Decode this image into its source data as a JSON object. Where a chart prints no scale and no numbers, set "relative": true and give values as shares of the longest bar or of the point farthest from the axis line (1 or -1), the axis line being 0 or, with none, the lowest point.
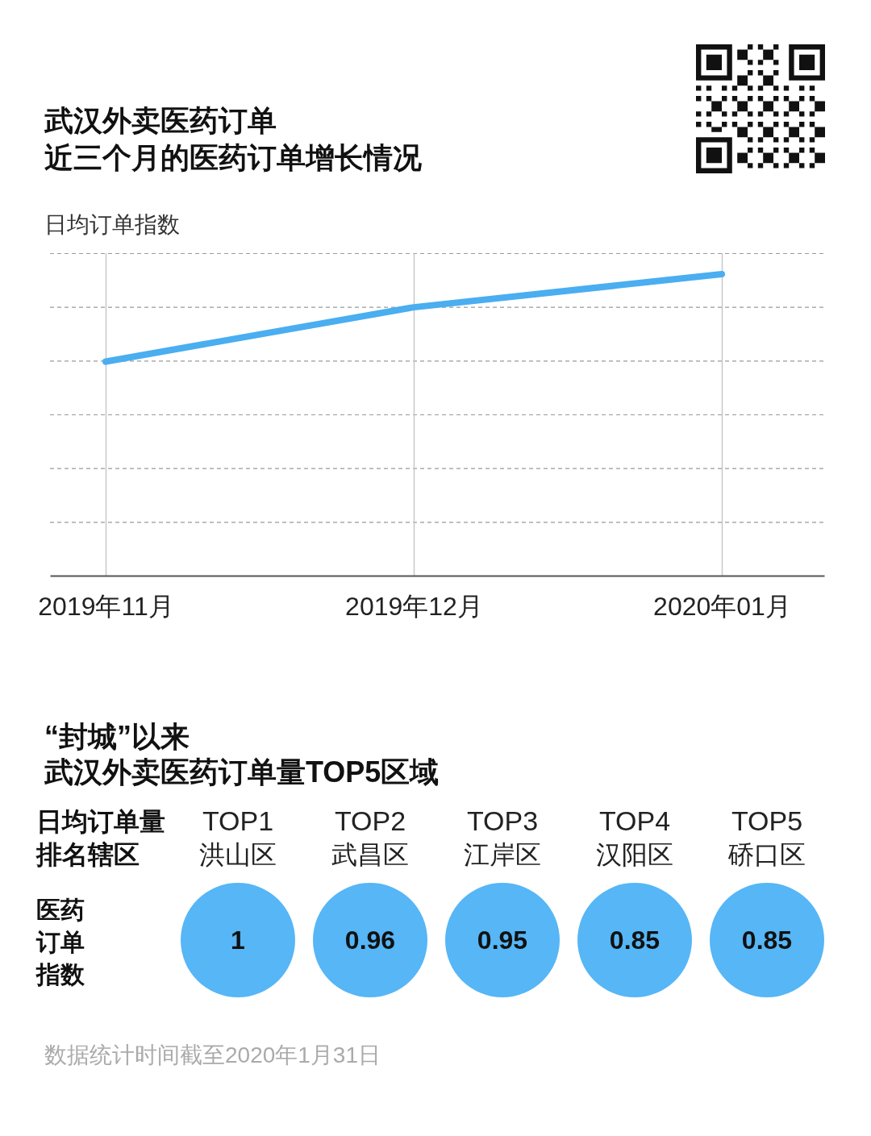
{
  "chart_data": [
    {
      "type": "line",
      "title": "武汉外卖医药订单",
      "subtitle": "近三个月的医药订单增长情况",
      "ylabel": "日均订单指数",
      "categories": [
        "2019年11月",
        "2019年12月",
        "2020年01月"
      ],
      "values": [
        0.71,
        0.89,
        1
      ],
      "color": "#4aaef0",
      "relative": true,
      "grid": true
    },
    {
      "type": "other",
      "title": "“封城”以来",
      "subtitle": "武汉外卖医药订单量TOP5区域",
      "xlabel": "日均订单量排名辖区",
      "ylabel": "医药订单指数",
      "categories": [
        "TOP1 洪山区",
        "TOP2 武昌区",
        "TOP3 江岸区",
        "TOP4 汉阳区",
        "TOP5 硚口区"
      ],
      "values": [
        1,
        0.96,
        0.95,
        0.85,
        0.85
      ],
      "color": "#56b6f6",
      "data_labels": true,
      "annotations": [
        "数据统计时间截至2020年1月31日"
      ]
    }
  ]
}
